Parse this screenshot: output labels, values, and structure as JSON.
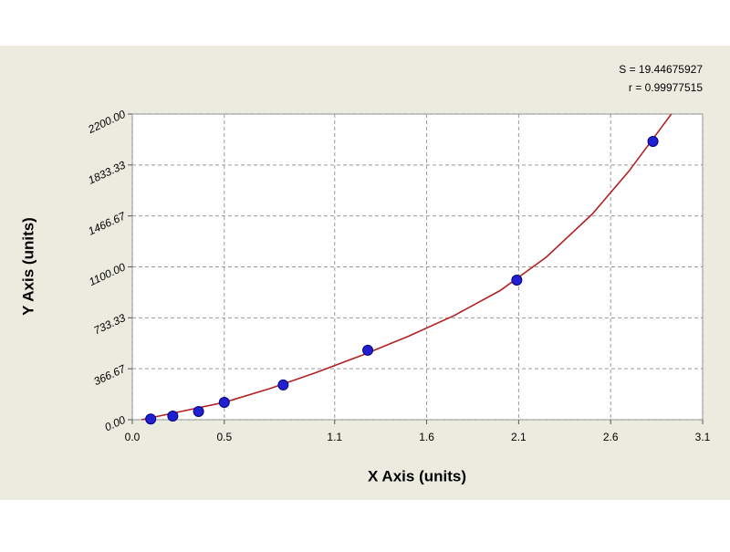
{
  "chart_data": {
    "type": "scatter",
    "x_label": "X Axis (units)",
    "y_label": "Y Axis (units)",
    "annotations": [
      "S = 19.44675927",
      "r = 0.99977515"
    ],
    "xlim": [
      0,
      3.1
    ],
    "xticks": [
      {
        "value": 0,
        "label": "0.0"
      },
      0.5,
      1.1,
      1.6,
      2.1,
      2.6,
      3.1
    ],
    "ylim": [
      0,
      2200
    ],
    "yticks": [
      {
        "value": 0,
        "label": "0.00"
      },
      366.67,
      733.33,
      {
        "value": 1100,
        "label": "1100.00"
      },
      1466.67,
      1833.33,
      {
        "value": 2200,
        "label": "2200.00"
      }
    ],
    "grid": true,
    "series": [
      {
        "color": "#2020d0",
        "x": [
          0.1,
          0.22,
          0.36,
          0.5,
          0.82,
          1.28,
          2.09,
          2.83
        ],
        "values": [
          5,
          26,
          59,
          125,
          250,
          500,
          1005,
          2003
        ]
      }
    ],
    "fit": {
      "color": "#b22222",
      "x": [
        0.05,
        0.25,
        0.5,
        0.75,
        1.0,
        1.25,
        1.5,
        1.75,
        2.0,
        2.25,
        2.5,
        2.7,
        2.93
      ],
      "values": [
        0,
        55,
        125,
        225,
        340,
        465,
        600,
        750,
        930,
        1170,
        1480,
        1790,
        2200
      ]
    }
  }
}
